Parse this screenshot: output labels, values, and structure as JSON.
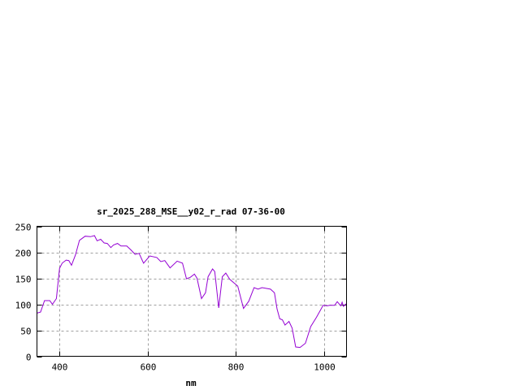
{
  "chart_data": {
    "type": "line",
    "title": "sr_2025_288_MSE__y02_r_rad 07-36-00",
    "xlabel": "nm",
    "ylabel": "",
    "xlim": [
      350,
      1050
    ],
    "ylim": [
      0,
      250
    ],
    "xticks": [
      400,
      600,
      800,
      1000
    ],
    "yticks": [
      0,
      50,
      100,
      150,
      200,
      250
    ],
    "grid": true,
    "line_color": "#9400d3",
    "grid_color": "#a0a0a0",
    "series": [
      {
        "x": [
          350,
          358,
          367,
          379,
          385,
          394,
          401,
          407,
          416,
          422,
          428,
          437,
          446,
          459,
          471,
          480,
          486,
          494,
          502,
          509,
          517,
          523,
          532,
          540,
          553,
          563,
          572,
          581,
          591,
          605,
          621,
          630,
          639,
          651,
          667,
          679,
          688,
          697,
          706,
          712,
          722,
          731,
          737,
          747,
          752,
          761,
          769,
          777,
          786,
          804,
          817,
          829,
          841,
          850,
          859,
          878,
          887,
          893,
          899,
          905,
          911,
          920,
          927,
          935,
          945,
          957,
          969,
          982,
          997,
          1006,
          1012,
          1023,
          1029,
          1037,
          1040,
          1043,
          1049
        ],
        "y": [
          83,
          85,
          107,
          107,
          100,
          111,
          169,
          179,
          185,
          184,
          175,
          195,
          223,
          231,
          230,
          232,
          222,
          225,
          218,
          217,
          209,
          214,
          217,
          212,
          212,
          204,
          196,
          198,
          179,
          193,
          190,
          182,
          184,
          170,
          183,
          179,
          149,
          152,
          158,
          150,
          111,
          122,
          153,
          168,
          163,
          93,
          153,
          160,
          148,
          135,
          92,
          106,
          132,
          129,
          132,
          129,
          122,
          91,
          72,
          70,
          60,
          67,
          54,
          18,
          17,
          25,
          57,
          75,
          98,
          97,
          98,
          98,
          105,
          97,
          104,
          96,
          101
        ]
      }
    ]
  }
}
